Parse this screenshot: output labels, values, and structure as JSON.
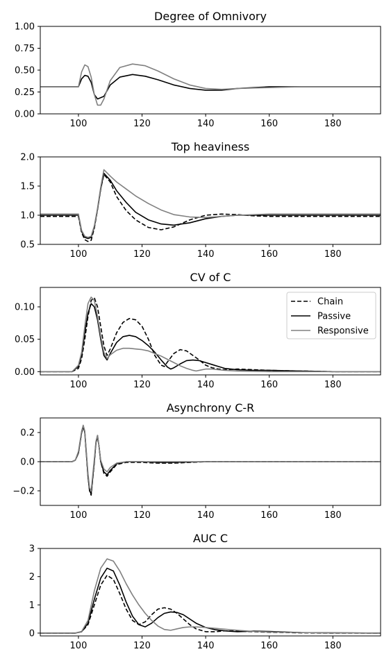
{
  "figure": {
    "line_colors": {
      "chain": "#000000",
      "passive": "#000000",
      "responsive": "#808080"
    }
  },
  "legend": {
    "placement": "top-right",
    "entries": [
      {
        "key": "chain",
        "label": "Chain",
        "style": "dashed"
      },
      {
        "key": "passive",
        "label": "Passive",
        "style": "solid"
      },
      {
        "key": "responsive",
        "label": "Responsive",
        "style": "solid"
      }
    ]
  },
  "chart_data": [
    {
      "type": "line",
      "title": "Degree of Omnivory",
      "xlim": [
        88,
        195
      ],
      "ylim": [
        0,
        1.0
      ],
      "xticks": [
        100,
        120,
        140,
        160,
        180
      ],
      "yticks": [
        0.0,
        0.25,
        0.5,
        0.75,
        1.0
      ],
      "ytick_labels": [
        "0.00",
        "0.25",
        "0.50",
        "0.75",
        "1.00"
      ],
      "legend": false,
      "series": [
        {
          "key": "passive",
          "style": "solid",
          "color": "#000000",
          "x": [
            88,
            100,
            101,
            102,
            103,
            104,
            105,
            106,
            108,
            110,
            113,
            117,
            121,
            125,
            130,
            135,
            140,
            145,
            150,
            160,
            170,
            180,
            195
          ],
          "y": [
            0.31,
            0.31,
            0.4,
            0.44,
            0.43,
            0.36,
            0.22,
            0.17,
            0.2,
            0.33,
            0.42,
            0.45,
            0.43,
            0.39,
            0.33,
            0.29,
            0.27,
            0.27,
            0.29,
            0.31,
            0.31,
            0.31,
            0.31
          ]
        },
        {
          "key": "responsive",
          "style": "solid",
          "color": "#808080",
          "x": [
            88,
            100,
            101,
            102,
            103,
            104,
            105,
            106,
            107,
            108,
            110,
            113,
            117,
            121,
            125,
            130,
            135,
            140,
            145,
            150,
            160,
            170,
            180,
            195
          ],
          "y": [
            0.31,
            0.31,
            0.48,
            0.56,
            0.54,
            0.42,
            0.22,
            0.1,
            0.1,
            0.17,
            0.38,
            0.53,
            0.57,
            0.55,
            0.49,
            0.4,
            0.33,
            0.29,
            0.28,
            0.29,
            0.3,
            0.31,
            0.31,
            0.31
          ]
        }
      ]
    },
    {
      "type": "line",
      "title": "Top heaviness",
      "xlim": [
        88,
        195
      ],
      "ylim": [
        0.5,
        2.0
      ],
      "xticks": [
        100,
        120,
        140,
        160,
        180
      ],
      "yticks": [
        0.5,
        1.0,
        1.5,
        2.0
      ],
      "ytick_labels": [
        "0.5",
        "1.0",
        "1.5",
        "2.0"
      ],
      "legend": false,
      "series": [
        {
          "key": "chain",
          "style": "dashed",
          "color": "#000000",
          "x": [
            88,
            100,
            101,
            102,
            103,
            104,
            105,
            106,
            107,
            108,
            110,
            112,
            115,
            118,
            122,
            126,
            130,
            135,
            140,
            145,
            150,
            155,
            160,
            170,
            180,
            195
          ],
          "y": [
            0.98,
            0.98,
            0.7,
            0.58,
            0.55,
            0.57,
            0.78,
            1.1,
            1.45,
            1.7,
            1.57,
            1.32,
            1.08,
            0.92,
            0.79,
            0.75,
            0.8,
            0.92,
            1.0,
            1.02,
            1.01,
            0.99,
            0.98,
            0.98,
            0.98,
            0.98
          ]
        },
        {
          "key": "passive",
          "style": "solid",
          "color": "#000000",
          "x": [
            88,
            100,
            101,
            102,
            103,
            104,
            105,
            106,
            107,
            108,
            110,
            112,
            115,
            118,
            122,
            126,
            130,
            135,
            140,
            145,
            150,
            160,
            170,
            180,
            195
          ],
          "y": [
            1.0,
            1.0,
            0.72,
            0.62,
            0.6,
            0.62,
            0.8,
            1.1,
            1.45,
            1.72,
            1.6,
            1.42,
            1.22,
            1.05,
            0.92,
            0.85,
            0.83,
            0.87,
            0.94,
            0.98,
            1.0,
            1.0,
            1.0,
            1.0,
            1.0
          ]
        },
        {
          "key": "responsive",
          "style": "solid",
          "color": "#808080",
          "x": [
            88,
            100,
            101,
            102,
            103,
            104,
            105,
            106,
            107,
            108,
            110,
            112,
            115,
            118,
            122,
            126,
            130,
            135,
            140,
            145,
            150,
            160,
            170,
            180,
            195
          ],
          "y": [
            1.02,
            1.02,
            0.74,
            0.64,
            0.62,
            0.64,
            0.82,
            1.12,
            1.48,
            1.78,
            1.67,
            1.57,
            1.45,
            1.33,
            1.2,
            1.09,
            1.01,
            0.97,
            0.96,
            0.98,
            1.0,
            1.02,
            1.02,
            1.02,
            1.02
          ]
        }
      ]
    },
    {
      "type": "line",
      "title": "CV of C",
      "xlim": [
        88,
        195
      ],
      "ylim": [
        -0.005,
        0.13
      ],
      "xticks": [
        100,
        120,
        140,
        160,
        180
      ],
      "yticks": [
        0.0,
        0.05,
        0.1
      ],
      "ytick_labels": [
        "0.00",
        "0.05",
        "0.10"
      ],
      "legend": true,
      "series": [
        {
          "key": "chain",
          "style": "dashed",
          "color": "#000000",
          "x": [
            88,
            98,
            100,
            101,
            102,
            103,
            104,
            105,
            106,
            107,
            108,
            109,
            110,
            112,
            114,
            116,
            118,
            120,
            122,
            124,
            126,
            127,
            128,
            130,
            132,
            134,
            136,
            138,
            140,
            142,
            144,
            146,
            150,
            155,
            160,
            170,
            180,
            195
          ],
          "y": [
            0,
            0,
            0.005,
            0.02,
            0.05,
            0.085,
            0.11,
            0.114,
            0.1,
            0.07,
            0.04,
            0.025,
            0.035,
            0.06,
            0.076,
            0.082,
            0.08,
            0.07,
            0.05,
            0.025,
            0.01,
            0.008,
            0.015,
            0.028,
            0.034,
            0.032,
            0.025,
            0.018,
            0.01,
            0.006,
            0.004,
            0.003,
            0.004,
            0.003,
            0.002,
            0.001,
            0,
            0
          ]
        },
        {
          "key": "passive",
          "style": "solid",
          "color": "#000000",
          "x": [
            88,
            98,
            100,
            101,
            102,
            103,
            104,
            105,
            106,
            107,
            108,
            109,
            110,
            112,
            114,
            116,
            118,
            120,
            122,
            124,
            126,
            128,
            129,
            130,
            132,
            134,
            136,
            138,
            140,
            142,
            144,
            146,
            150,
            155,
            160,
            170,
            180,
            195
          ],
          "y": [
            0,
            0,
            0.008,
            0.025,
            0.06,
            0.09,
            0.105,
            0.1,
            0.08,
            0.05,
            0.025,
            0.018,
            0.028,
            0.045,
            0.054,
            0.056,
            0.054,
            0.048,
            0.04,
            0.03,
            0.018,
            0.007,
            0.004,
            0.006,
            0.012,
            0.017,
            0.018,
            0.017,
            0.014,
            0.011,
            0.008,
            0.005,
            0.003,
            0.002,
            0.002,
            0.001,
            0,
            0
          ]
        },
        {
          "key": "responsive",
          "style": "solid",
          "color": "#808080",
          "x": [
            88,
            98,
            100,
            101,
            102,
            103,
            104,
            105,
            106,
            107,
            108,
            109,
            110,
            112,
            114,
            116,
            118,
            120,
            122,
            124,
            126,
            128,
            130,
            132,
            134,
            136,
            137,
            138,
            140,
            142,
            144,
            146,
            150,
            160,
            180,
            195
          ],
          "y": [
            0,
            0,
            0.01,
            0.03,
            0.07,
            0.105,
            0.115,
            0.11,
            0.085,
            0.055,
            0.03,
            0.02,
            0.026,
            0.033,
            0.036,
            0.036,
            0.035,
            0.034,
            0.032,
            0.028,
            0.024,
            0.019,
            0.014,
            0.009,
            0.005,
            0.002,
            0.001,
            0.002,
            0.004,
            0.004,
            0.003,
            0.002,
            0.001,
            0,
            0,
            0
          ]
        }
      ]
    },
    {
      "type": "line",
      "title": "Asynchrony C-R",
      "xlim": [
        88,
        195
      ],
      "ylim": [
        -0.3,
        0.3
      ],
      "xticks": [
        100,
        120,
        140,
        160,
        180
      ],
      "yticks": [
        -0.2,
        0.0,
        0.2
      ],
      "ytick_labels": [
        "−0.2",
        "0.0",
        "0.2"
      ],
      "legend": false,
      "series": [
        {
          "key": "chain",
          "style": "dashed",
          "color": "#000000",
          "x": [
            88,
            98,
            99,
            100,
            101,
            101.5,
            102,
            103,
            103.5,
            104,
            105,
            105.5,
            106,
            106.5,
            107,
            108,
            109,
            110,
            112,
            115,
            120,
            125,
            130,
            135,
            140,
            150,
            195
          ],
          "y": [
            0,
            0,
            0.01,
            0.06,
            0.2,
            0.24,
            0.2,
            -0.1,
            -0.2,
            -0.23,
            0.0,
            0.13,
            0.17,
            0.1,
            0.0,
            -0.08,
            -0.1,
            -0.07,
            -0.02,
            -0.005,
            -0.005,
            -0.01,
            -0.01,
            -0.005,
            0,
            0,
            0
          ]
        },
        {
          "key": "passive",
          "style": "solid",
          "color": "#000000",
          "x": [
            88,
            98,
            99,
            100,
            101,
            101.5,
            102,
            103,
            103.5,
            104,
            105,
            105.5,
            106,
            106.5,
            107,
            108,
            109,
            110,
            112,
            115,
            120,
            125,
            130,
            140,
            195
          ],
          "y": [
            0,
            0,
            0.01,
            0.06,
            0.2,
            0.24,
            0.2,
            -0.1,
            -0.2,
            -0.22,
            0.0,
            0.13,
            0.18,
            0.1,
            0.0,
            -0.07,
            -0.09,
            -0.06,
            -0.015,
            0,
            0,
            -0.005,
            -0.005,
            0,
            0
          ]
        },
        {
          "key": "responsive",
          "style": "solid",
          "color": "#808080",
          "x": [
            88,
            98,
            99,
            100,
            101,
            101.5,
            102,
            103,
            103.5,
            104,
            105,
            105.5,
            106,
            106.5,
            107,
            108,
            109,
            110,
            112,
            115,
            120,
            130,
            140,
            195
          ],
          "y": [
            0,
            0,
            0.01,
            0.07,
            0.21,
            0.25,
            0.21,
            -0.08,
            -0.18,
            -0.2,
            0.02,
            0.14,
            0.18,
            0.1,
            0.01,
            -0.05,
            -0.07,
            -0.04,
            -0.01,
            0,
            0,
            0,
            0,
            0
          ]
        }
      ]
    },
    {
      "type": "line",
      "title": "AUC C",
      "xlim": [
        88,
        195
      ],
      "ylim": [
        -0.1,
        3.0
      ],
      "xticks": [
        100,
        120,
        140,
        160,
        180
      ],
      "yticks": [
        0,
        1,
        2,
        3
      ],
      "ytick_labels": [
        "0",
        "1",
        "2",
        "3"
      ],
      "legend": false,
      "series": [
        {
          "key": "chain",
          "style": "dashed",
          "color": "#000000",
          "x": [
            88,
            99,
            101,
            103,
            105,
            107,
            109,
            111,
            113,
            115,
            117,
            119,
            121,
            123,
            125,
            127,
            129,
            131,
            133,
            135,
            137,
            140,
            143,
            146,
            150,
            155,
            160,
            170,
            180,
            195
          ],
          "y": [
            0,
            0,
            0.05,
            0.3,
            1.0,
            1.7,
            2.05,
            1.9,
            1.4,
            0.85,
            0.45,
            0.3,
            0.4,
            0.65,
            0.85,
            0.9,
            0.85,
            0.7,
            0.5,
            0.3,
            0.15,
            0.05,
            0.05,
            0.08,
            0.07,
            0.05,
            0.03,
            0.01,
            0,
            0
          ]
        },
        {
          "key": "passive",
          "style": "solid",
          "color": "#000000",
          "x": [
            88,
            99,
            101,
            103,
            105,
            107,
            109,
            111,
            113,
            115,
            117,
            119,
            121,
            123,
            125,
            127,
            129,
            131,
            133,
            135,
            137,
            140,
            143,
            146,
            150,
            155,
            160,
            170,
            180,
            195
          ],
          "y": [
            0,
            0,
            0.05,
            0.35,
            1.2,
            1.95,
            2.3,
            2.2,
            1.7,
            1.1,
            0.6,
            0.3,
            0.22,
            0.35,
            0.55,
            0.7,
            0.75,
            0.73,
            0.65,
            0.5,
            0.35,
            0.2,
            0.12,
            0.08,
            0.05,
            0.07,
            0.06,
            0.02,
            0.01,
            0
          ]
        },
        {
          "key": "responsive",
          "style": "solid",
          "color": "#808080",
          "x": [
            88,
            99,
            101,
            103,
            105,
            107,
            109,
            111,
            113,
            115,
            117,
            119,
            121,
            123,
            125,
            127,
            129,
            131,
            133,
            135,
            137,
            140,
            143,
            146,
            150,
            155,
            160,
            170,
            180,
            195
          ],
          "y": [
            0,
            0,
            0.06,
            0.45,
            1.5,
            2.3,
            2.63,
            2.55,
            2.2,
            1.75,
            1.35,
            1.0,
            0.7,
            0.45,
            0.25,
            0.13,
            0.1,
            0.15,
            0.2,
            0.22,
            0.22,
            0.2,
            0.17,
            0.14,
            0.1,
            0.06,
            0.04,
            0.02,
            0.01,
            0
          ]
        }
      ]
    }
  ]
}
